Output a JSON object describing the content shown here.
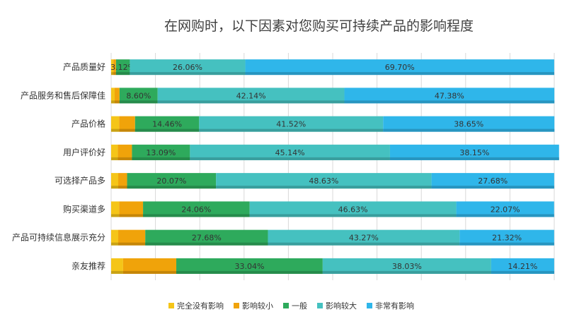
{
  "chart_data": {
    "type": "bar",
    "orientation": "horizontal",
    "stacked": "percent",
    "title": "在网购时，以下因素对您购买可持续产品的影响程度",
    "categories": [
      "产品质量好",
      "产品服务和售后保障佳",
      "产品价格",
      "用户评价好",
      "可选择产品多",
      "购买渠道多",
      "产品可持续信息展示充分",
      "亲友推荐"
    ],
    "series": [
      {
        "name": "完全没有影响",
        "color": "#f5c518",
        "values": [
          0.5,
          0.8,
          1.8,
          1.5,
          1.6,
          1.8,
          1.6,
          2.7
        ],
        "labels": [
          "",
          "",
          "",
          "",
          "",
          "",
          "",
          ""
        ]
      },
      {
        "name": "影响较小",
        "color": "#f0a30a",
        "values": [
          0.6,
          1.1,
          3.6,
          3.2,
          2.0,
          5.4,
          6.1,
          12.0
        ],
        "labels": [
          "",
          "",
          "",
          "",
          "",
          "",
          "",
          ""
        ]
      },
      {
        "name": "一般",
        "color": "#2eaa5c",
        "values": [
          3.12,
          8.6,
          14.46,
          13.09,
          20.07,
          24.06,
          27.68,
          33.04
        ],
        "labels": [
          "3.12%",
          "8.60%",
          "14.46%",
          "13.09%",
          "20.07%",
          "24.06%",
          "27.68%",
          "33.04%"
        ]
      },
      {
        "name": "影响较大",
        "color": "#45c1c0",
        "values": [
          26.06,
          42.14,
          41.52,
          45.14,
          48.63,
          46.63,
          43.27,
          38.03
        ],
        "labels": [
          "26.06%",
          "42.14%",
          "41.52%",
          "45.14%",
          "48.63%",
          "46.63%",
          "43.27%",
          "38.03%"
        ]
      },
      {
        "name": "非常有影响",
        "color": "#2fb6ea",
        "values": [
          69.7,
          47.38,
          38.65,
          38.15,
          27.68,
          22.07,
          21.32,
          14.21
        ],
        "labels": [
          "69.70%",
          "47.38%",
          "38.65%",
          "38.15%",
          "27.68%",
          "22.07%",
          "21.32%",
          "14.21%"
        ]
      }
    ],
    "xlim": [
      0,
      100
    ],
    "grid": true,
    "legend_position": "bottom"
  }
}
